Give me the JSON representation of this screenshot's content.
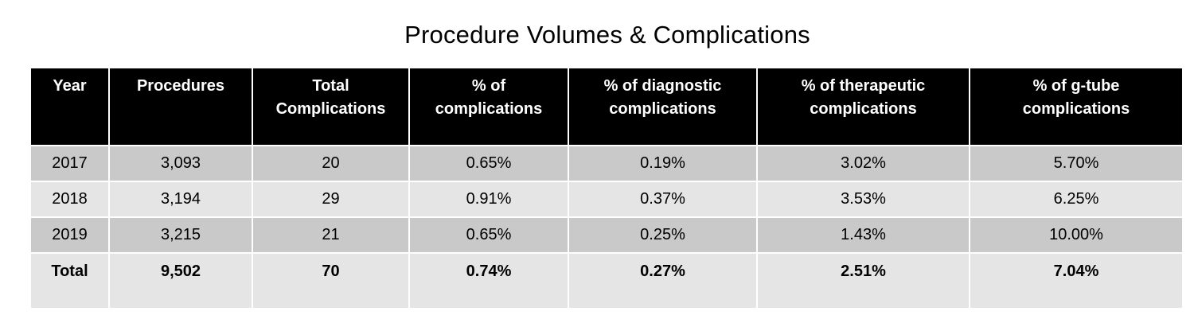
{
  "chart_data": {
    "type": "table",
    "title": "Procedure Volumes & Complications",
    "columns": [
      "Year",
      "Procedures",
      "Total Complications",
      "% of complications",
      "% of diagnostic complications",
      "% of therapeutic complications",
      "% of g-tube complications"
    ],
    "rows": [
      [
        "2017",
        "3,093",
        "20",
        "0.65%",
        "0.19%",
        "3.02%",
        "5.70%"
      ],
      [
        "2018",
        "3,194",
        "29",
        "0.91%",
        "0.37%",
        "3.53%",
        "6.25%"
      ],
      [
        "2019",
        "3,215",
        "21",
        "0.65%",
        "0.25%",
        "1.43%",
        "10.00%"
      ]
    ],
    "total": [
      "Total",
      "9,502",
      "70",
      "0.74%",
      "0.27%",
      "2.51%",
      "7.04%"
    ]
  },
  "colors": {
    "header_bg": "#000000",
    "header_text": "#ffffff",
    "row_dark": "#c9c9c9",
    "row_light": "#e5e5e5"
  }
}
